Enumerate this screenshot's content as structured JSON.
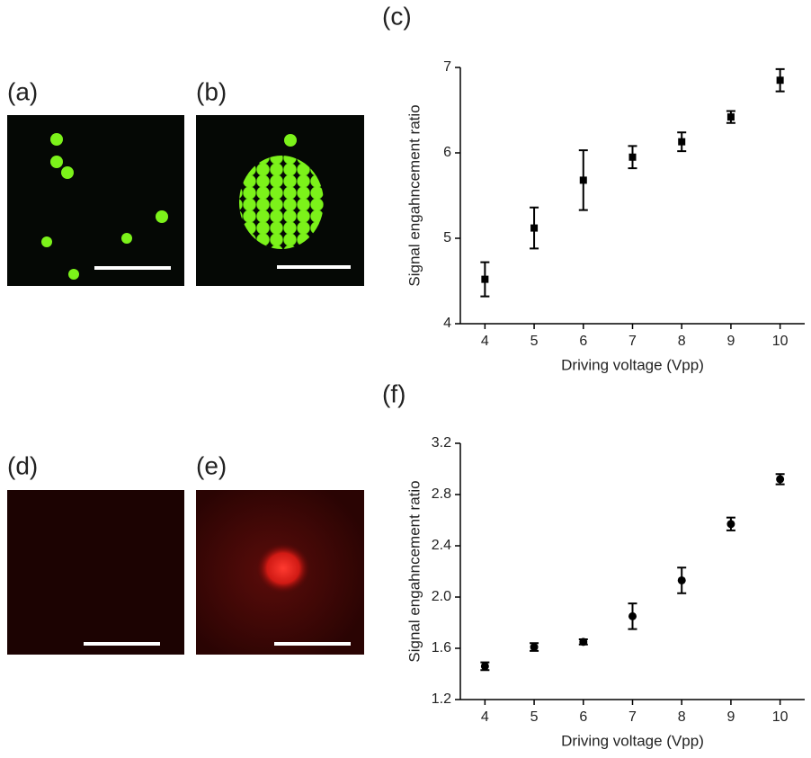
{
  "panel_labels": [
    "(a)",
    "(b)",
    "(d)",
    "(e)"
  ],
  "chart_data": [
    {
      "type": "scatter",
      "title": "(c)",
      "x_label": "Driving voltage (Vpp)",
      "y_label": "Signal engahncement ratio",
      "x": [
        4,
        5,
        6,
        7,
        8,
        9,
        10
      ],
      "xlim": [
        3.5,
        10.5
      ],
      "xticks": [
        4,
        5,
        6,
        7,
        8,
        9,
        10
      ],
      "ylim": [
        4,
        7
      ],
      "yticks": [
        4,
        5,
        6,
        7
      ],
      "marker": "square",
      "series": [
        {
          "color": "#000000",
          "values": [
            4.52,
            5.12,
            5.68,
            5.95,
            6.13,
            6.42,
            6.85
          ],
          "errors": [
            0.2,
            0.24,
            0.35,
            0.13,
            0.11,
            0.07,
            0.13
          ]
        }
      ]
    },
    {
      "type": "scatter",
      "title": "(f)",
      "x_label": "Driving voltage (Vpp)",
      "y_label": "Signal engahncement ratio",
      "x": [
        4,
        5,
        6,
        7,
        8,
        9,
        10
      ],
      "xlim": [
        3.5,
        10.5
      ],
      "xticks": [
        4,
        5,
        6,
        7,
        8,
        9,
        10
      ],
      "ylim": [
        1.2,
        3.2
      ],
      "yticks": [
        1.2,
        1.6,
        {
          "value": 2,
          "label": "2.0"
        },
        2.4,
        2.8,
        3.2
      ],
      "marker": "circle",
      "series": [
        {
          "color": "#000000",
          "values": [
            1.46,
            1.61,
            1.65,
            1.85,
            2.13,
            2.57,
            2.92
          ],
          "errors": [
            0.03,
            0.03,
            0.02,
            0.1,
            0.1,
            0.05,
            0.04
          ]
        }
      ]
    }
  ]
}
